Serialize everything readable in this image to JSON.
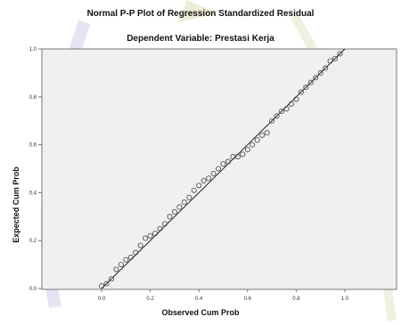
{
  "chart_data": {
    "type": "scatter",
    "title": "Normal P-P Plot of Regression Standardized Residual",
    "subtitle": "Dependent Variable: Prestasi Kerja",
    "xlabel": "Observed Cum Prob",
    "ylabel": "Expected Cum Prob",
    "xlim": [
      0,
      1
    ],
    "ylim": [
      0,
      1
    ],
    "x_ticks": [
      "0.0",
      "0.2",
      "0.4",
      "0.6",
      "0.8",
      "1.0"
    ],
    "y_ticks": [
      "0.0",
      "0.2",
      "0.4",
      "0.6",
      "0.8",
      "1.0"
    ],
    "reference_line": {
      "from": [
        0,
        0
      ],
      "to": [
        1,
        1
      ]
    },
    "grid": false,
    "legend": "none",
    "series": [
      {
        "x": [
          0.0,
          0.02,
          0.04,
          0.06,
          0.08,
          0.1,
          0.12,
          0.14,
          0.16,
          0.18,
          0.2,
          0.22,
          0.24,
          0.26,
          0.28,
          0.3,
          0.32,
          0.34,
          0.36,
          0.38,
          0.4,
          0.42,
          0.44,
          0.46,
          0.48,
          0.5,
          0.52,
          0.54,
          0.56,
          0.58,
          0.6,
          0.62,
          0.64,
          0.66,
          0.68,
          0.7,
          0.72,
          0.74,
          0.76,
          0.78,
          0.8,
          0.82,
          0.84,
          0.86,
          0.88,
          0.9,
          0.92,
          0.94,
          0.96,
          0.98
        ],
        "y": [
          0.01,
          0.02,
          0.04,
          0.08,
          0.1,
          0.12,
          0.13,
          0.15,
          0.18,
          0.21,
          0.22,
          0.23,
          0.25,
          0.27,
          0.3,
          0.32,
          0.34,
          0.36,
          0.38,
          0.41,
          0.43,
          0.45,
          0.46,
          0.48,
          0.5,
          0.52,
          0.53,
          0.55,
          0.55,
          0.56,
          0.58,
          0.6,
          0.62,
          0.64,
          0.65,
          0.7,
          0.72,
          0.74,
          0.75,
          0.77,
          0.79,
          0.82,
          0.84,
          0.86,
          0.88,
          0.9,
          0.92,
          0.95,
          0.96,
          0.98
        ]
      }
    ],
    "colors": {
      "plot_background": "#f0f0f0",
      "frame": "#777777",
      "marker": "#444444",
      "reference_line": "#222222"
    }
  }
}
